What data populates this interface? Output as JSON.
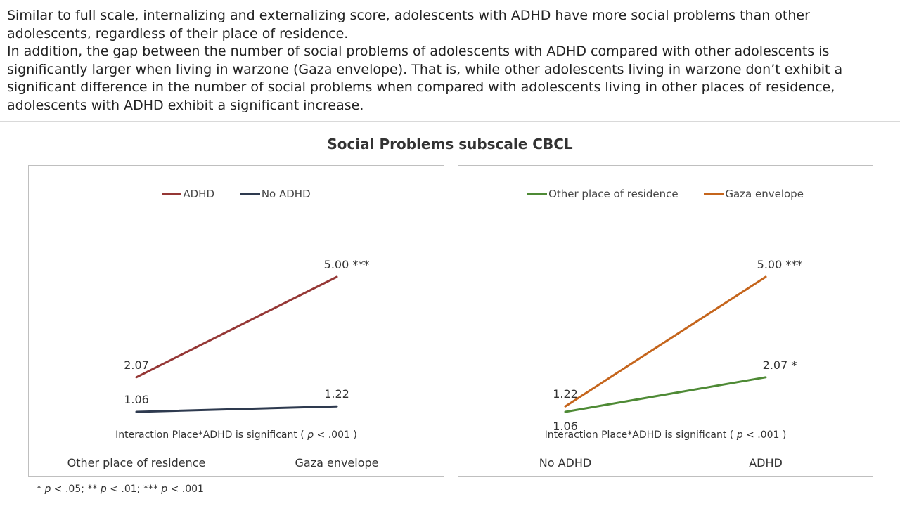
{
  "intro": {
    "p1": "Similar to full scale, internalizing and externalizing score, adolescents with ADHD have more social problems than other adolescents, regardless of their place of residence.",
    "p2": "In addition, the gap between the number of social problems of adolescents with ADHD compared with other adolescents is significantly larger when living in warzone (Gaza envelope). That is, while other adolescents living in warzone don’t exhibit a significant difference in the number of social problems when compared with adolescents living in other places of residence, adolescents with ADHD exhibit a significant increase."
  },
  "figure_title": "Social Problems subscale CBCL",
  "footnote": {
    "s1": "* ",
    "p1": "p",
    "s2": " < .05; ** ",
    "p2": "p",
    "s3": " < .01; *** ",
    "p3": "p",
    "s4": " < .001"
  },
  "chart_data": [
    {
      "type": "line",
      "categories": [
        "Other place of residence",
        "Gaza envelope"
      ],
      "series": [
        {
          "name": "ADHD",
          "color": "#953735",
          "values": [
            2.07,
            5.0
          ],
          "labels": [
            "2.07",
            "5.00 ***"
          ]
        },
        {
          "name": "No ADHD",
          "color": "#2e3a4f",
          "values": [
            1.06,
            1.22
          ],
          "labels": [
            "1.06",
            "1.22"
          ]
        }
      ],
      "annotation": {
        "pre": "Interaction Place*ADHD is significant  ( ",
        "p": "p",
        "post": " < .001 )"
      },
      "ylim": [
        0,
        6
      ]
    },
    {
      "type": "line",
      "categories": [
        "No ADHD",
        "ADHD"
      ],
      "series": [
        {
          "name": "Other place of residence",
          "color": "#4e8a35",
          "values": [
            1.06,
            2.07
          ],
          "labels": [
            "1.06",
            "2.07 *"
          ]
        },
        {
          "name": "Gaza envelope",
          "color": "#c5651c",
          "values": [
            1.22,
            5.0
          ],
          "labels": [
            "1.22",
            "5.00 ***"
          ]
        }
      ],
      "annotation": {
        "pre": "Interaction Place*ADHD is significant  ( ",
        "p": "p",
        "post": " < .001 )"
      },
      "ylim": [
        0,
        6
      ]
    }
  ]
}
